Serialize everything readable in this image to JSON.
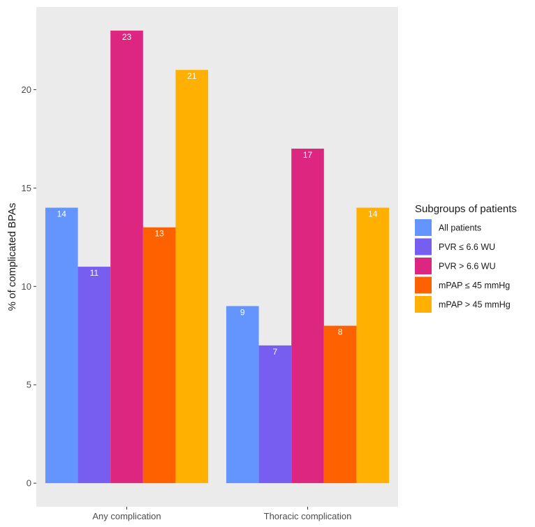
{
  "chart_data": {
    "type": "bar",
    "categories": [
      "Any complication",
      "Thoracic complication"
    ],
    "series": [
      {
        "name": "All patients",
        "values": [
          14,
          9
        ],
        "color": "#6495ff"
      },
      {
        "name": "PVR ≤ 6.6 WU",
        "values": [
          11,
          7
        ],
        "color": "#785ef0"
      },
      {
        "name": "PVR > 6.6 WU",
        "values": [
          23,
          17
        ],
        "color": "#dc267f"
      },
      {
        "name": "mPAP ≤ 45 mmHg",
        "values": [
          13,
          8
        ],
        "color": "#fe6100"
      },
      {
        "name": "mPAP > 45 mmHg",
        "values": [
          21,
          14
        ],
        "color": "#ffb000"
      }
    ],
    "ylabel": "% of complicated BPAs",
    "xlabel": "",
    "ylim": [
      -1.2,
      24.2
    ],
    "yticks": [
      0,
      5,
      10,
      15,
      20
    ],
    "grid": false,
    "legend_title": "Subgroups of patients",
    "legend_position": "right",
    "panel_background": "#ebebeb"
  }
}
